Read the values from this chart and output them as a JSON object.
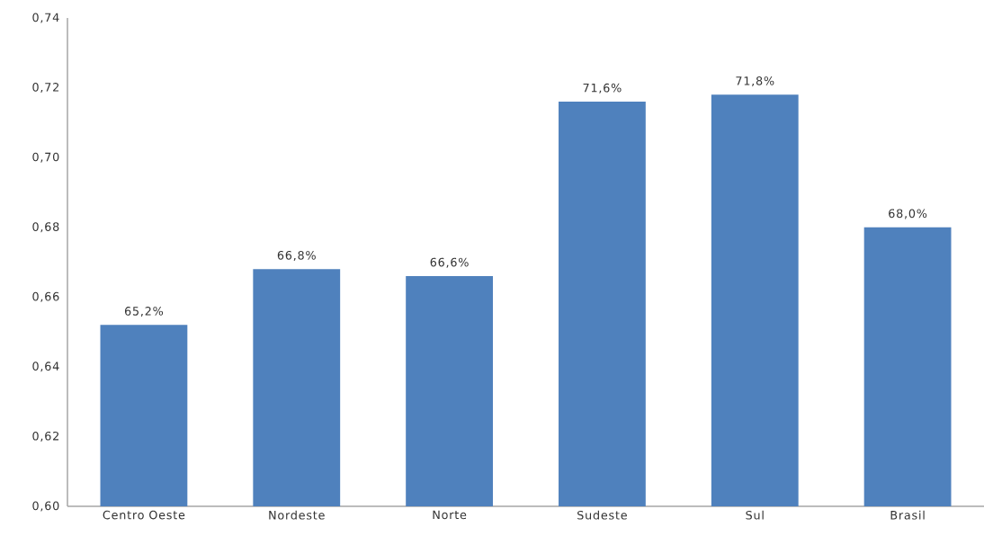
{
  "chart_data": {
    "type": "bar",
    "categories": [
      "Centro Oeste",
      "Nordeste",
      "Norte",
      "Sudeste",
      "Sul",
      "Brasil"
    ],
    "values": [
      0.652,
      0.668,
      0.666,
      0.716,
      0.718,
      0.68
    ],
    "value_labels": [
      "65,2%",
      "66,8%",
      "66,6%",
      "71,6%",
      "71,8%",
      "68,0%"
    ],
    "color": "#4f81bd",
    "ylim": [
      0.6,
      0.74
    ],
    "yticks": [
      {
        "value": 0.6,
        "label": "0,60"
      },
      {
        "value": 0.62,
        "label": "0,62"
      },
      {
        "value": 0.64,
        "label": "0,64"
      },
      {
        "value": 0.66,
        "label": "0,66"
      },
      {
        "value": 0.68,
        "label": "0,68"
      },
      {
        "value": 0.7,
        "label": "0,70"
      },
      {
        "value": 0.72,
        "label": "0,72"
      },
      {
        "value": 0.74,
        "label": "0,74"
      }
    ]
  }
}
